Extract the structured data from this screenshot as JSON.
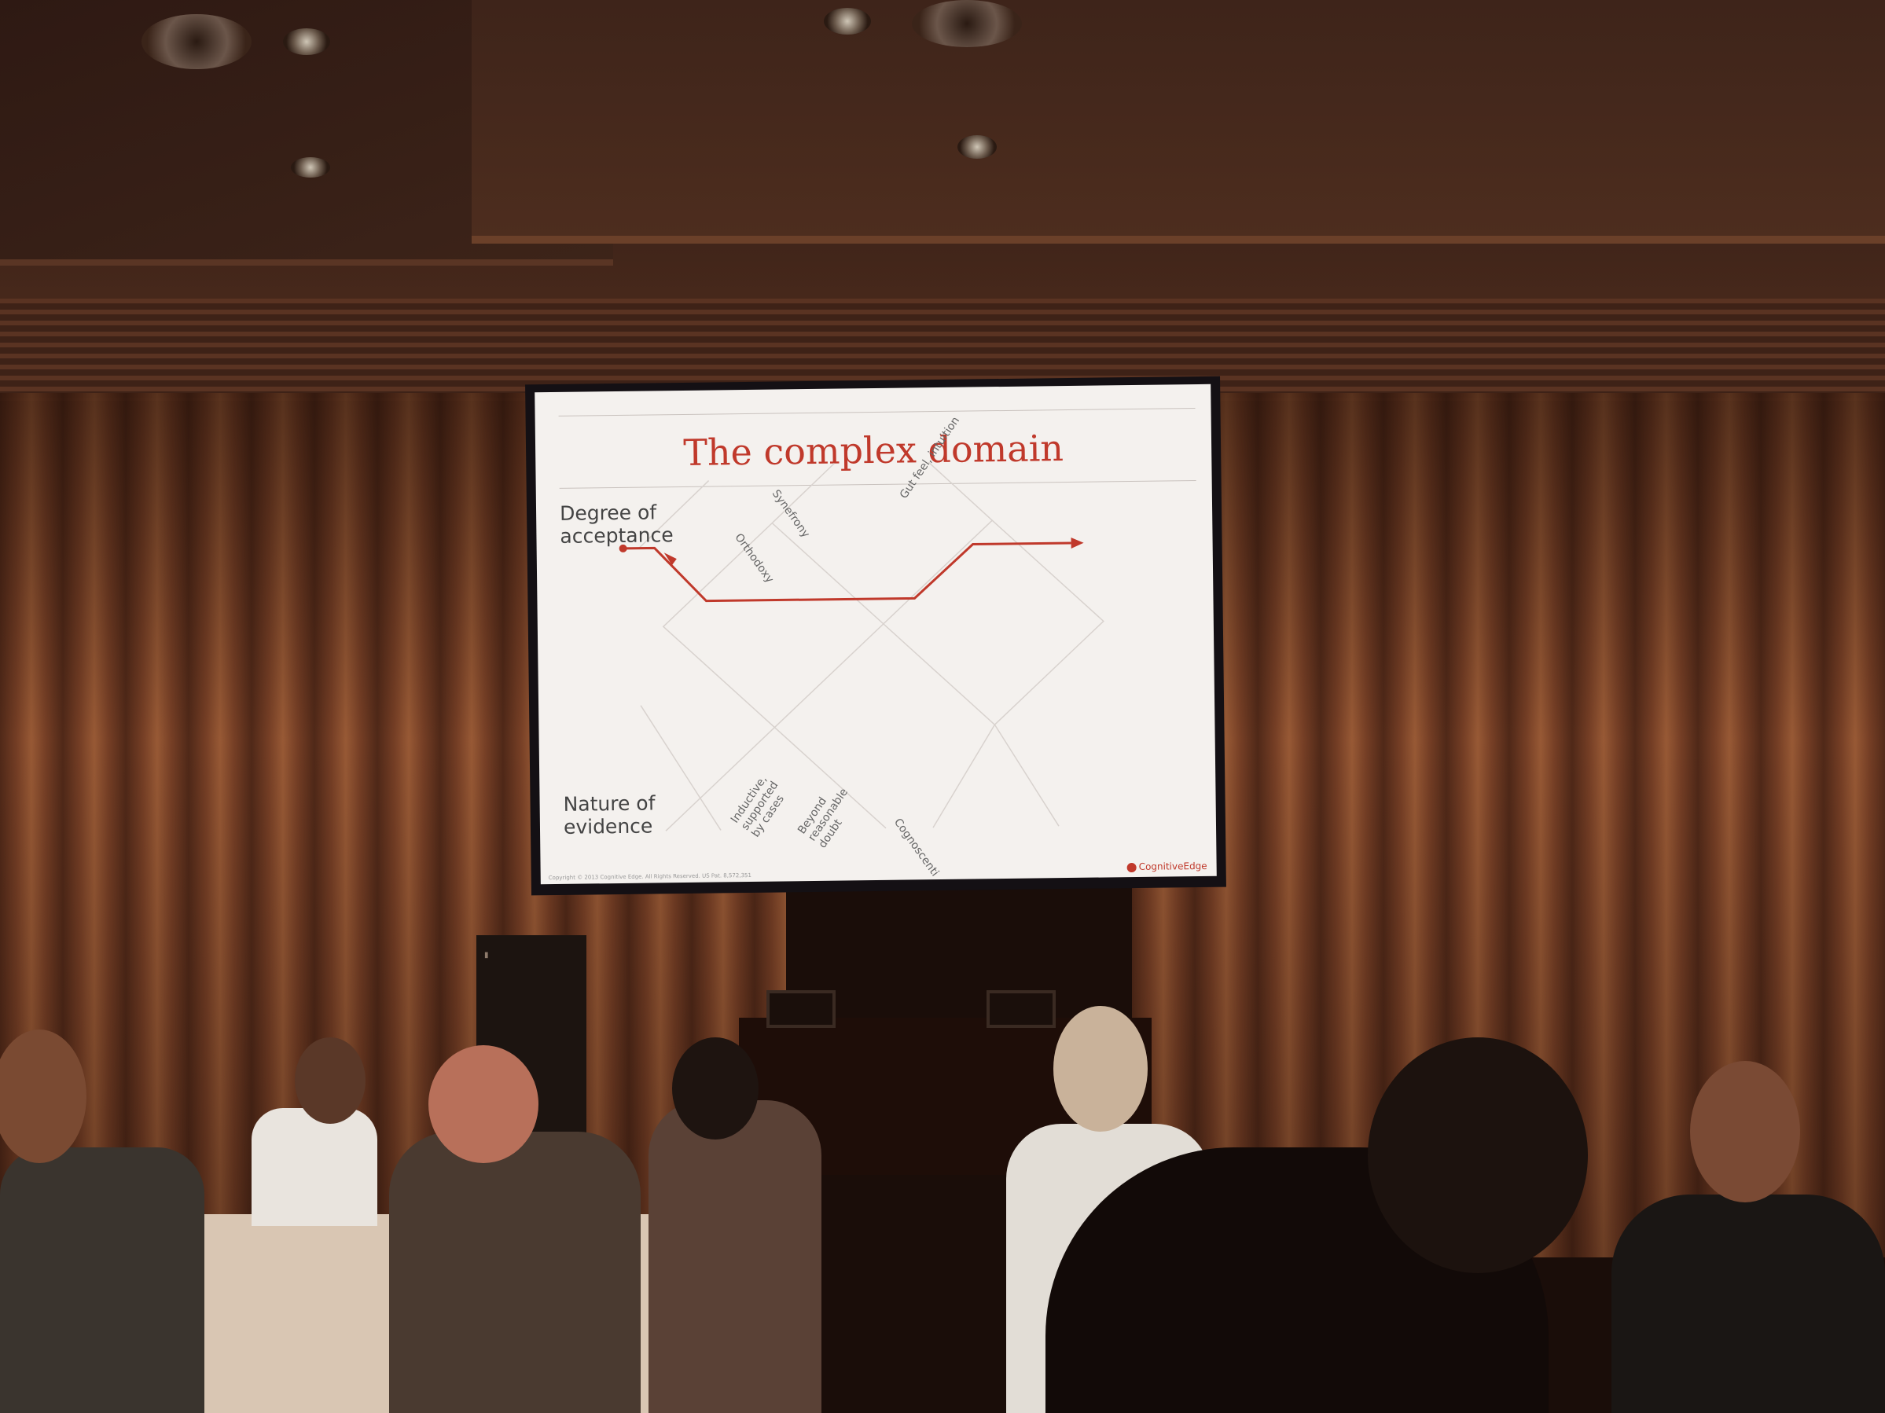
{
  "slide": {
    "title": "The complex domain",
    "label_acceptance": "Degree of acceptance",
    "label_evidence": "Nature of evidence",
    "top_labels": [
      "Synefrony",
      "Gut feel, intuition",
      "Orthodoxy"
    ],
    "bottom_labels": [
      "Inductive, supported by cases",
      "Beyond reasonable doubt",
      "Cognoscenti"
    ],
    "copyright": "Copyright © 2013 Cognitive Edge. All Rights Reserved.  US Pat. 8,572,351",
    "logo": "CognitiveEdge"
  },
  "colors": {
    "accent": "#c0392b",
    "screen": "#f4f1ee",
    "curtain": "#8a4a2c"
  }
}
